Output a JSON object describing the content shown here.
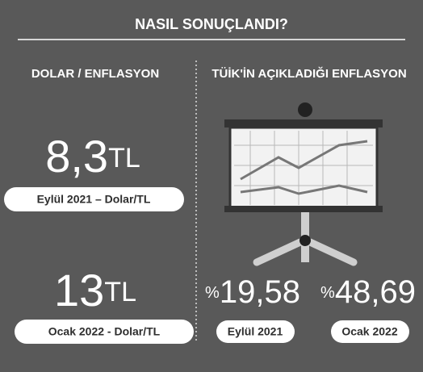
{
  "title": "NASIL SONUÇLANDI?",
  "left": {
    "heading": "DOLAR / ENFLASYON",
    "items": [
      {
        "value": "8,3",
        "unit": "TL",
        "label": "Eylül 2021 – Dolar/TL"
      },
      {
        "value": "13",
        "unit": "TL",
        "label": "Ocak 2022 - Dolar/TL"
      }
    ]
  },
  "right": {
    "heading": "TÜİK'İN AÇIKLADIĞI ENFLASYON",
    "items": [
      {
        "prefix": "%",
        "value": "19,58",
        "label": "Eylül 2021"
      },
      {
        "prefix": "%",
        "value": "48,69",
        "label": "Ocak 2022"
      }
    ]
  }
}
